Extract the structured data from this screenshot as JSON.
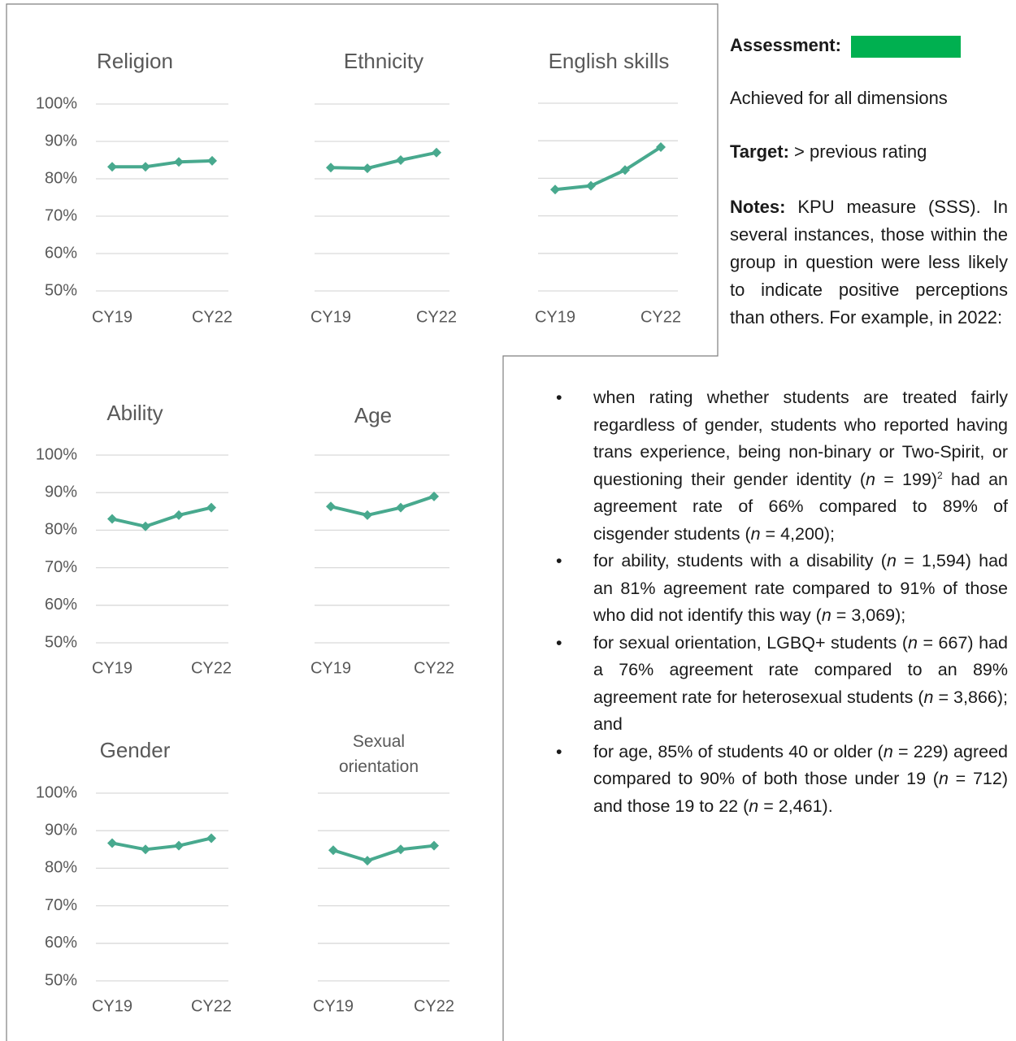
{
  "chart_data": [
    {
      "type": "line",
      "title": "Religion",
      "categories": [
        "CY19",
        null,
        null,
        "CY22"
      ],
      "values": [
        83.2,
        83.2,
        84.5,
        84.8
      ],
      "color": "#48a98e",
      "ylim": [
        50,
        100
      ],
      "yticks": [
        {
          "value": 50,
          "label": "50%"
        },
        {
          "value": 60,
          "label": "60%"
        },
        {
          "value": 70,
          "label": "70%"
        },
        {
          "value": 80,
          "label": "80%"
        },
        {
          "value": 90,
          "label": "90%"
        },
        {
          "value": 100,
          "label": "100%"
        }
      ],
      "grid": true
    },
    {
      "type": "line",
      "title": "Ethnicity",
      "categories": [
        "CY19",
        null,
        null,
        "CY22"
      ],
      "values": [
        83,
        82.8,
        85,
        87
      ],
      "color": "#48a98e",
      "ylim": [
        50,
        100
      ],
      "yticks": [
        50,
        60,
        70,
        80,
        90,
        100
      ],
      "grid": true
    },
    {
      "type": "line",
      "title": "English skills",
      "categories": [
        "CY19",
        null,
        null,
        "CY22"
      ],
      "values": [
        77,
        78,
        82.2,
        88.3
      ],
      "color": "#48a98e",
      "ylim": [
        50,
        100
      ],
      "yticks": [
        50,
        60,
        70,
        80,
        90,
        100
      ],
      "grid": true
    },
    {
      "type": "line",
      "title": "Ability",
      "categories": [
        "CY19",
        null,
        null,
        "CY22"
      ],
      "values": [
        83,
        81,
        84,
        86
      ],
      "color": "#48a98e",
      "ylim": [
        50,
        100
      ],
      "yticks": [
        {
          "value": 50,
          "label": "50%"
        },
        {
          "value": 60,
          "label": "60%"
        },
        {
          "value": 70,
          "label": "70%"
        },
        {
          "value": 80,
          "label": "80%"
        },
        {
          "value": 90,
          "label": "90%"
        },
        {
          "value": 100,
          "label": "100%"
        }
      ],
      "grid": true
    },
    {
      "type": "line",
      "title": "Age",
      "categories": [
        "CY19",
        null,
        null,
        "CY22"
      ],
      "values": [
        86.3,
        84,
        86,
        89
      ],
      "color": "#48a98e",
      "ylim": [
        50,
        100
      ],
      "yticks": [
        50,
        60,
        70,
        80,
        90,
        100
      ],
      "grid": true
    },
    {
      "type": "line",
      "title": "Gender",
      "categories": [
        "CY19",
        null,
        null,
        "CY22"
      ],
      "values": [
        86.7,
        85,
        86,
        88
      ],
      "color": "#48a98e",
      "ylim": [
        50,
        100
      ],
      "yticks": [
        {
          "value": 50,
          "label": "50%"
        },
        {
          "value": 60,
          "label": "60%"
        },
        {
          "value": 70,
          "label": "70%"
        },
        {
          "value": 80,
          "label": "80%"
        },
        {
          "value": 90,
          "label": "90%"
        },
        {
          "value": 100,
          "label": "100%"
        }
      ],
      "grid": true
    },
    {
      "type": "line",
      "title": "Sexual orientation",
      "categories": [
        "CY19",
        null,
        null,
        "CY22"
      ],
      "values": [
        84.8,
        82,
        85,
        86
      ],
      "color": "#48a98e",
      "ylim": [
        50,
        100
      ],
      "yticks": [
        50,
        60,
        70,
        80,
        90,
        100
      ],
      "grid": true
    }
  ],
  "assessment": {
    "label": "Assessment:",
    "color": "#00b050"
  },
  "achieved": "Achieved for all dimensions",
  "target": {
    "label": "Target:",
    "text": " > previous rating"
  },
  "notes": {
    "label": "Notes:",
    "text": " KPU measure (SSS). In several instances, those within the group in question were less likely to indicate positive perceptions than others. For example, in 2022:"
  },
  "bullets": [
    [
      {
        "text": "when rating whether students are treated fairly regardless of gender, students who reported having trans experience, being non-binary or Two-Spirit, or questioning their gender identity ("
      },
      {
        "text": "n",
        "style": "italic"
      },
      {
        "text": " = 199)"
      },
      {
        "text": "2",
        "style": "sup"
      },
      {
        "text": " had an agreement rate of 66% compared to 89% of cisgender students ("
      },
      {
        "text": "n",
        "style": "italic"
      },
      {
        "text": " = 4,200);"
      }
    ],
    [
      {
        "text": "for ability, students with a disability ("
      },
      {
        "text": "n",
        "style": "italic"
      },
      {
        "text": " = 1,594) had an 81% agreement rate compared to 91% of those who did not identify this way ("
      },
      {
        "text": "n",
        "style": "italic"
      },
      {
        "text": " = 3,069);"
      }
    ],
    [
      {
        "text": "for sexual orientation, LGBQ+ students ("
      },
      {
        "text": "n",
        "style": "italic"
      },
      {
        "text": " = 667) had a 76% agreement rate compared to an 89% agreement rate for heterosexual students ("
      },
      {
        "text": "n",
        "style": "italic"
      },
      {
        "text": " = 3,866); and"
      }
    ],
    [
      {
        "text": "for age, 85% of students 40 or older ("
      },
      {
        "text": "n",
        "style": "italic"
      },
      {
        "text": " = 229) agreed compared to 90% of both those under 19 ("
      },
      {
        "text": "n",
        "style": "italic"
      },
      {
        "text": " = 712) and those 19 to 22 ("
      },
      {
        "text": "n",
        "style": "italic"
      },
      {
        "text": " = 2,461)."
      }
    ]
  ]
}
